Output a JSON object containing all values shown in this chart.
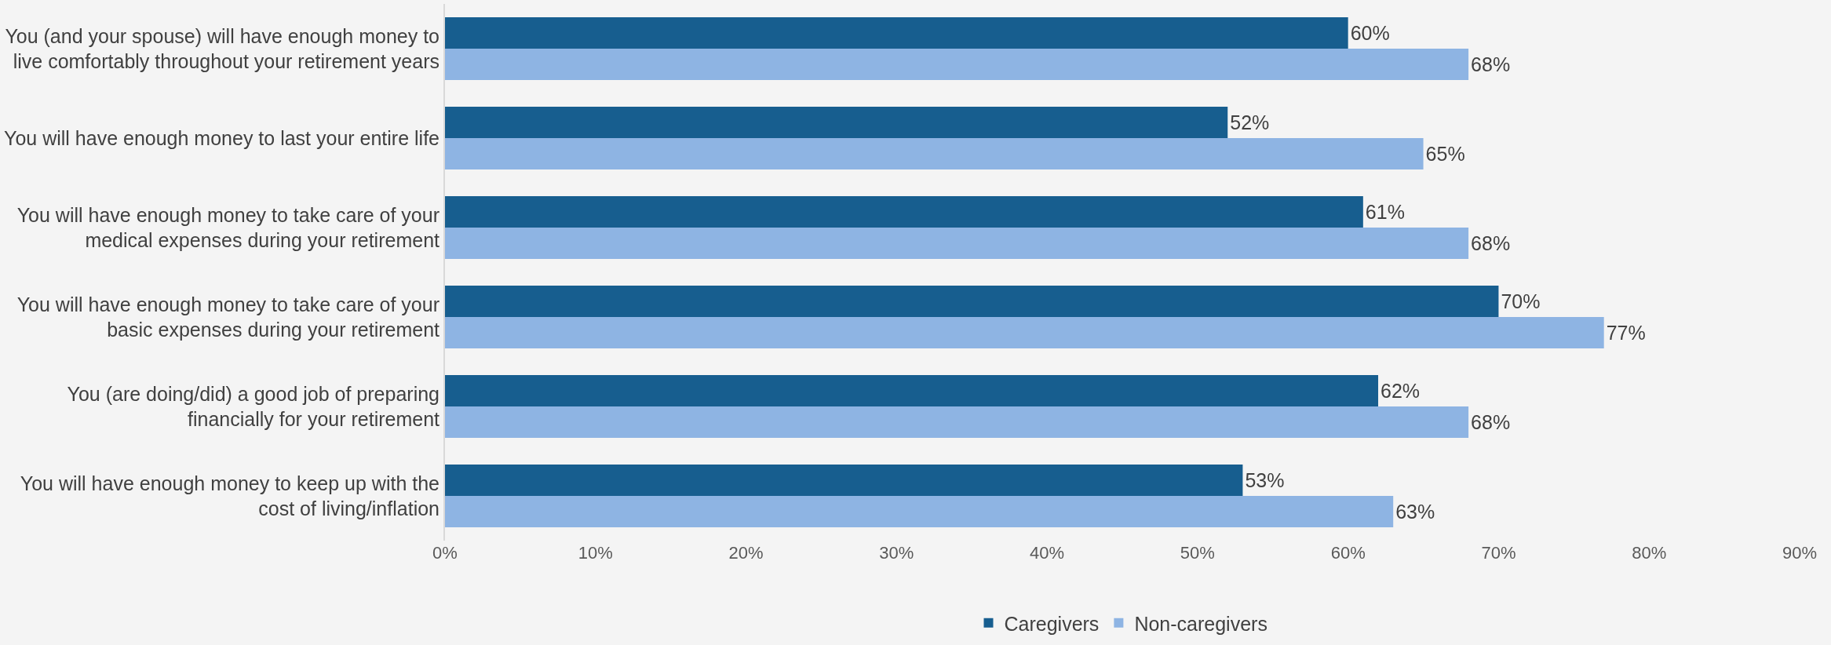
{
  "chart_data": {
    "type": "bar",
    "orientation": "horizontal",
    "categories": [
      "You (and your spouse) will have enough money to\nlive comfortably throughout your retirement years",
      "You will have enough money to last your entire life",
      "You will have enough money to take care of your\nmedical expenses during your retirement",
      "You will have enough money to take care of your\nbasic expenses during your retirement",
      "You (are doing/did) a good job of preparing\nfinancially for your retirement",
      "You will have enough money to keep up with the\ncost of living/inflation"
    ],
    "series": [
      {
        "name": "Caregivers",
        "color": "#175e8f",
        "values": [
          60,
          52,
          61,
          70,
          62,
          53
        ],
        "value_labels": [
          "60%",
          "52%",
          "61%",
          "70%",
          "62%",
          "53%"
        ]
      },
      {
        "name": "Non-caregivers",
        "color": "#8eb4e3",
        "values": [
          68,
          65,
          68,
          77,
          68,
          63
        ],
        "value_labels": [
          "68%",
          "65%",
          "68%",
          "77%",
          "68%",
          "63%"
        ]
      }
    ],
    "xlim": [
      0,
      90
    ],
    "xticks": [
      {
        "value": 0,
        "label": "0%"
      },
      {
        "value": 10,
        "label": "10%"
      },
      {
        "value": 20,
        "label": "20%"
      },
      {
        "value": 30,
        "label": "30%"
      },
      {
        "value": 40,
        "label": "40%"
      },
      {
        "value": 50,
        "label": "50%"
      },
      {
        "value": 60,
        "label": "60%"
      },
      {
        "value": 70,
        "label": "70%"
      },
      {
        "value": 80,
        "label": "80%"
      },
      {
        "value": 90,
        "label": "90%"
      }
    ],
    "grid": false,
    "legend": "bottom"
  }
}
